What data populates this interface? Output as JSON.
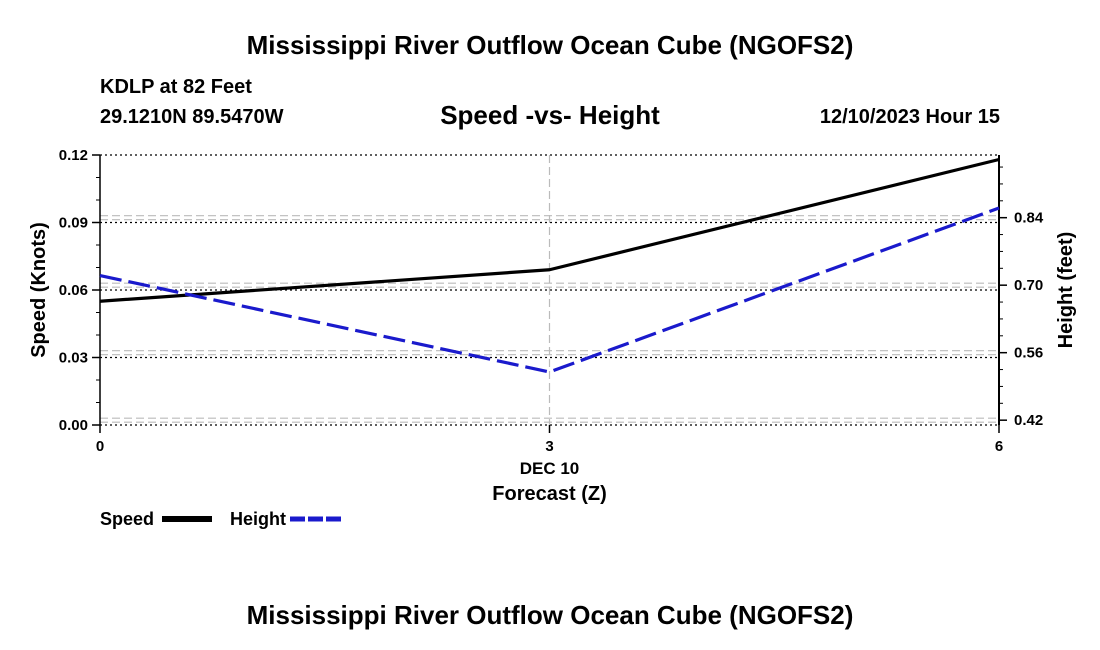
{
  "page": {
    "title_top": "Mississippi River Outflow Ocean Cube (NGOFS2)",
    "title_bottom": "Mississippi River Outflow Ocean Cube (NGOFS2)",
    "station": "KDLP at 82 Feet",
    "coords": "29.1210N  89.5470W",
    "plot_title": "Speed -vs- Height",
    "datetime": "12/10/2023 Hour 15"
  },
  "legend": {
    "speed_label": "Speed",
    "height_label": "Height"
  },
  "colors": {
    "speed": "#000000",
    "height": "#1a1acc",
    "grid": "#bbbbbb"
  },
  "chart_data": {
    "type": "line",
    "title": "Speed -vs- Height",
    "xlabel": "Forecast (Z)",
    "x_date_label": "DEC 10",
    "x": [
      0,
      3,
      6
    ],
    "x_ticks": [
      "0",
      "3",
      "6"
    ],
    "xlim": [
      0,
      6
    ],
    "ylabel_left": "Speed (Knots)",
    "ylim_left": [
      0,
      0.12
    ],
    "yticks_left": [
      "0.00",
      "0.03",
      "0.06",
      "0.09",
      "0.12"
    ],
    "ylabel_right": "Height (feet)",
    "ylim_right": [
      0.41,
      0.97
    ],
    "yticks_right_values": [
      0.42,
      0.56,
      0.7,
      0.84
    ],
    "yticks_right": [
      "0.42",
      "0.56",
      "0.70",
      "0.84"
    ],
    "grid": true,
    "legend_position": "bottom-left",
    "series": [
      {
        "name": "Speed",
        "axis": "left",
        "style": "solid",
        "values": [
          0.055,
          0.069,
          0.118
        ]
      },
      {
        "name": "Height",
        "axis": "right",
        "style": "dashed",
        "values": [
          0.72,
          0.52,
          0.86
        ]
      }
    ]
  }
}
